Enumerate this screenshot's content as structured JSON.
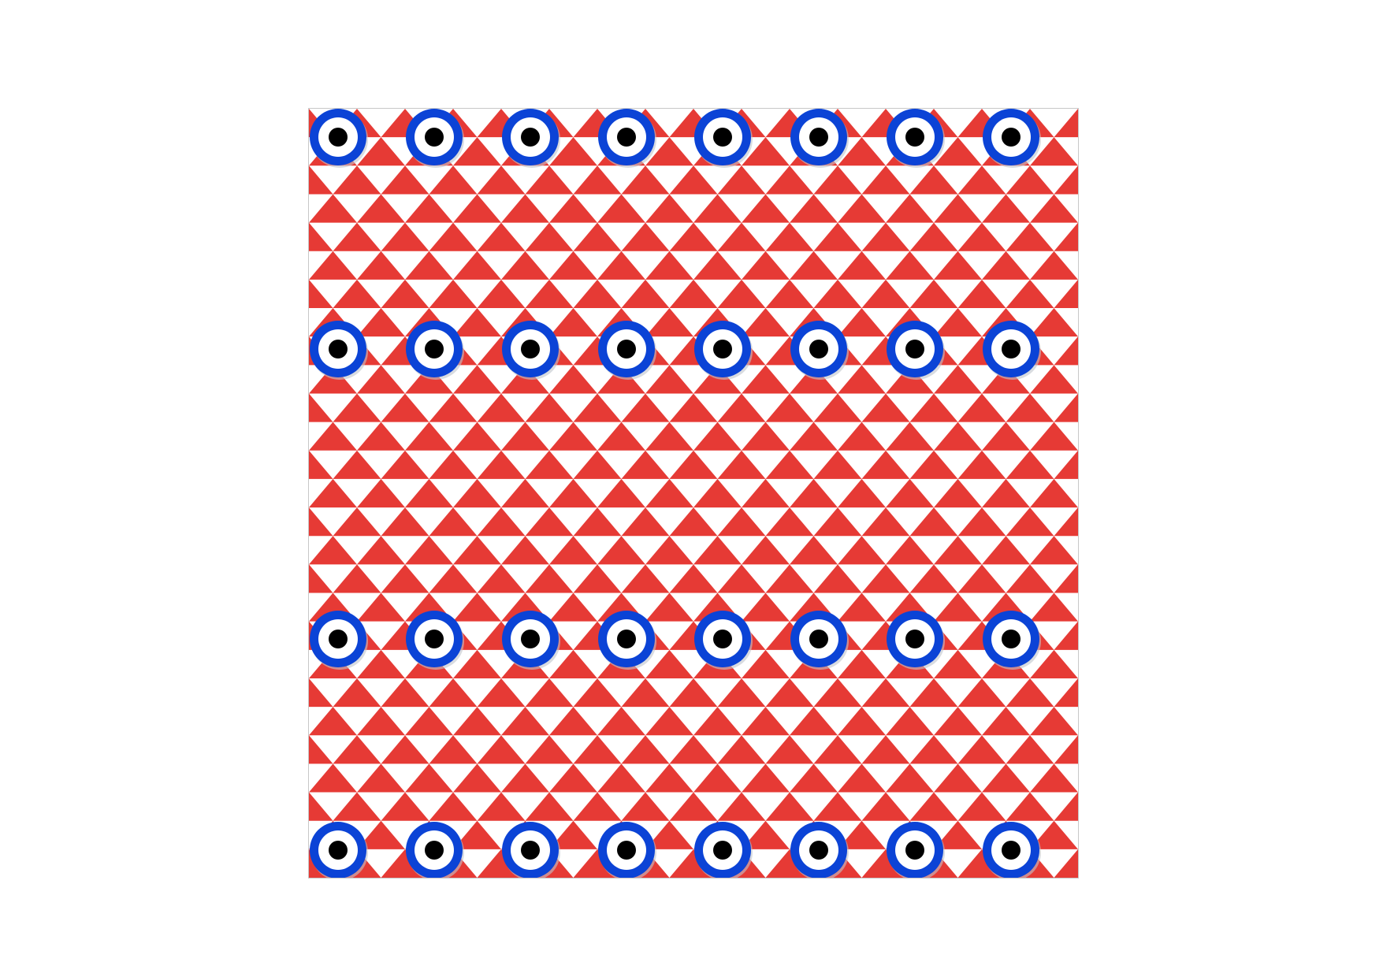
{
  "pattern": {
    "description_tag": "",
    "colors": {
      "background": "#ffffff",
      "triangle_red": "#e63a35",
      "triangle_white": "#ffffff",
      "eye_ring": "#0b43d6",
      "eye_white": "#ffffff",
      "eye_pupil": "#000000",
      "eye_shadow": "#bfc4cc"
    },
    "motif": {
      "background_shape": "alternating red and white triangles",
      "overlay_icon": "evil-eye-icon"
    },
    "grid": {
      "triangle_rows": 27,
      "triangle_columns": 32,
      "eye_rows": 4,
      "eye_columns": 8,
      "eye_count": 32
    }
  }
}
